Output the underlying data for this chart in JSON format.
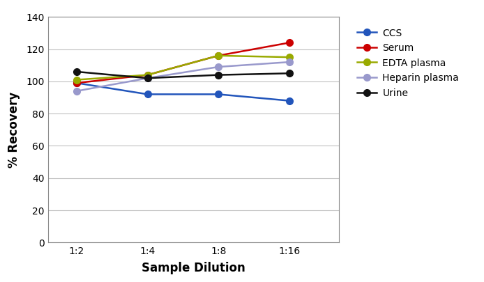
{
  "x_labels": [
    "1:2",
    "1:4",
    "1:8",
    "1:16"
  ],
  "x_positions": [
    1,
    2,
    3,
    4
  ],
  "series": [
    {
      "name": "CCS",
      "color": "#2255bb",
      "values": [
        99,
        92,
        92,
        88
      ]
    },
    {
      "name": "Serum",
      "color": "#cc0000",
      "values": [
        99,
        104,
        116,
        124
      ]
    },
    {
      "name": "EDTA plasma",
      "color": "#99aa00",
      "values": [
        101,
        104,
        116,
        115
      ]
    },
    {
      "name": "Heparin plasma",
      "color": "#9999cc",
      "values": [
        94,
        102,
        109,
        112
      ]
    },
    {
      "name": "Urine",
      "color": "#111111",
      "values": [
        106,
        102,
        104,
        105
      ]
    }
  ],
  "xlabel": "Sample Dilution",
  "ylabel": "% Recovery",
  "ylim": [
    0,
    140
  ],
  "yticks": [
    0,
    20,
    40,
    60,
    80,
    100,
    120,
    140
  ],
  "xlim": [
    0.6,
    4.7
  ],
  "background_color": "#ffffff",
  "grid_color": "#c0c0c0",
  "marker": "o",
  "markersize": 7,
  "linewidth": 1.8,
  "tick_fontsize": 10,
  "label_fontsize": 12,
  "legend_fontsize": 10
}
